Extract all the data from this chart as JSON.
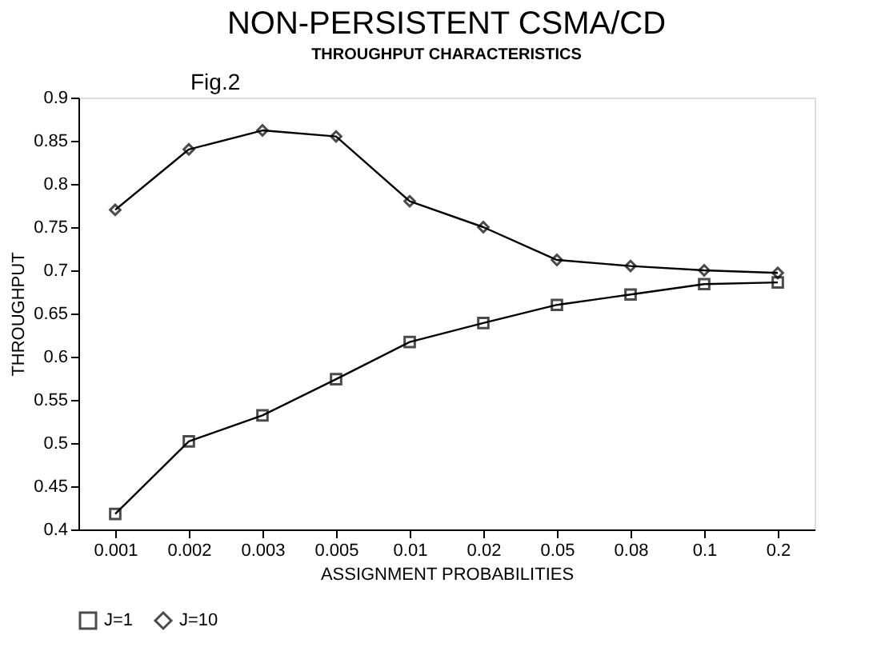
{
  "chart_data": {
    "type": "line",
    "title": "NON-PERSISTENT CSMA/CD",
    "subtitle": "THROUGHPUT CHARACTERISTICS",
    "annotations": [
      "Fig.2"
    ],
    "xlabel": "ASSIGNMENT PROBABILITIES",
    "ylabel": "THROUGHPUT",
    "categories": [
      "0.001",
      "0.002",
      "0.003",
      "0.005",
      "0.01",
      "0.02",
      "0.05",
      "0.08",
      "0.1",
      "0.2"
    ],
    "series": [
      {
        "name": "J=1",
        "color": "#000000",
        "marker": "square",
        "values": [
          0.418,
          0.502,
          0.532,
          0.574,
          0.617,
          0.639,
          0.66,
          0.672,
          0.684,
          0.686
        ]
      },
      {
        "name": "J=10",
        "color": "#000000",
        "marker": "diamond",
        "values": [
          0.77,
          0.84,
          0.862,
          0.855,
          0.78,
          0.75,
          0.712,
          0.705,
          0.7,
          0.697
        ]
      }
    ],
    "ylim": [
      0.4,
      0.9
    ],
    "yticks": [
      0.4,
      0.45,
      0.5,
      0.55,
      0.6,
      0.65,
      0.7,
      0.75,
      0.8,
      0.85,
      0.9
    ],
    "grid": false,
    "legend": "bottom",
    "line_style": "solid"
  }
}
